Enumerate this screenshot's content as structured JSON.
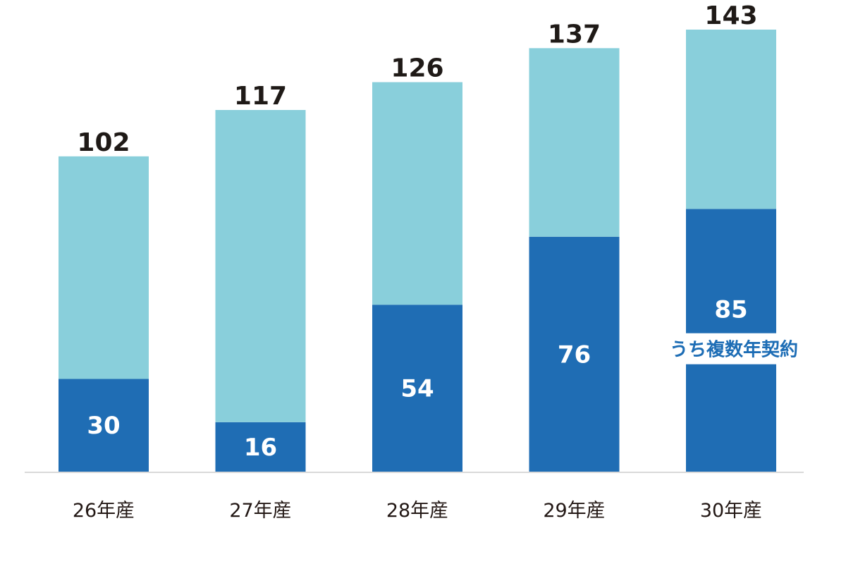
{
  "chart_data": {
    "type": "bar",
    "stacked": true,
    "categories": [
      "26年産",
      "27年産",
      "28年産",
      "29年産",
      "30年産"
    ],
    "totals": [
      102,
      117,
      126,
      137,
      143
    ],
    "series": [
      {
        "values": [
          30,
          16,
          54,
          76,
          85
        ],
        "color": "#1f6db4"
      },
      {
        "values": [
          72,
          101,
          72,
          61,
          58
        ],
        "color": "#89cfdb"
      }
    ],
    "segment_labels": [
      "30",
      "16",
      "54",
      "76",
      "85"
    ],
    "total_labels": [
      "102",
      "117",
      "126",
      "137",
      "143"
    ],
    "annotation": {
      "text": "うち複数年契約",
      "category_index": 4
    },
    "ylim": [
      0,
      143
    ],
    "grid": false,
    "legend": "none"
  }
}
